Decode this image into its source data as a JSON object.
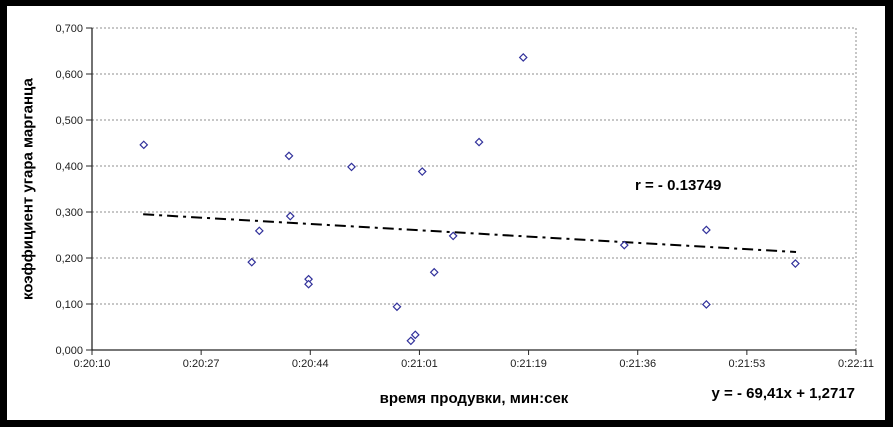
{
  "chart_data": {
    "type": "scatter",
    "title": "",
    "xlabel": "время продувки, мин:сек",
    "ylabel": "коэффициент угара марганца",
    "x_axis": {
      "tick_labels": [
        "0:20:10",
        "0:20:27",
        "0:20:44",
        "0:21:01",
        "0:21:19",
        "0:21:36",
        "0:21:53",
        "0:22:11"
      ],
      "span_seconds": 121,
      "note": "t_sec = seconds after 0:20:10"
    },
    "y_axis": {
      "tick_labels": [
        "0,000",
        "0,100",
        "0,200",
        "0,300",
        "0,400",
        "0,500",
        "0,600",
        "0,700"
      ],
      "min": 0,
      "max": 0.7,
      "step": 0.1
    },
    "grid": "horizontal",
    "legend": "none",
    "marker": {
      "shape": "open-diamond",
      "color": "#32329b"
    },
    "points": [
      {
        "time": "0:20:18",
        "t_sec": 8.2,
        "value": 0.446
      },
      {
        "time": "0:20:35",
        "t_sec": 25.3,
        "value": 0.191
      },
      {
        "time": "0:20:36",
        "t_sec": 26.5,
        "value": 0.259
      },
      {
        "time": "0:20:41",
        "t_sec": 31.2,
        "value": 0.422
      },
      {
        "time": "0:20:41",
        "t_sec": 31.4,
        "value": 0.291
      },
      {
        "time": "0:20:44",
        "t_sec": 34.3,
        "value": 0.154
      },
      {
        "time": "0:20:44",
        "t_sec": 34.3,
        "value": 0.143
      },
      {
        "time": "0:20:51",
        "t_sec": 41.1,
        "value": 0.398
      },
      {
        "time": "0:20:58",
        "t_sec": 48.3,
        "value": 0.094
      },
      {
        "time": "0:21:00",
        "t_sec": 50.5,
        "value": 0.02
      },
      {
        "time": "0:21:01",
        "t_sec": 51.2,
        "value": 0.033
      },
      {
        "time": "0:21:02",
        "t_sec": 52.3,
        "value": 0.388
      },
      {
        "time": "0:21:04",
        "t_sec": 54.2,
        "value": 0.169
      },
      {
        "time": "0:21:07",
        "t_sec": 57.2,
        "value": 0.248
      },
      {
        "time": "0:21:11",
        "t_sec": 61.3,
        "value": 0.452
      },
      {
        "time": "0:21:18",
        "t_sec": 68.3,
        "value": 0.636
      },
      {
        "time": "0:21:34",
        "t_sec": 84.3,
        "value": 0.228
      },
      {
        "time": "0:21:47",
        "t_sec": 97.3,
        "value": 0.261
      },
      {
        "time": "0:21:47",
        "t_sec": 97.3,
        "value": 0.099
      },
      {
        "time": "0:22:01",
        "t_sec": 111.4,
        "value": 0.188
      }
    ],
    "trend_line": {
      "style": "dash-dot",
      "color": "#000000",
      "start": {
        "t_sec": 8.1,
        "value": 0.295
      },
      "end": {
        "t_sec": 111.5,
        "value": 0.213
      }
    },
    "annotations": {
      "correlation": "r = - 0.13749",
      "equation": "y = - 69,41x + 1,2717"
    }
  }
}
